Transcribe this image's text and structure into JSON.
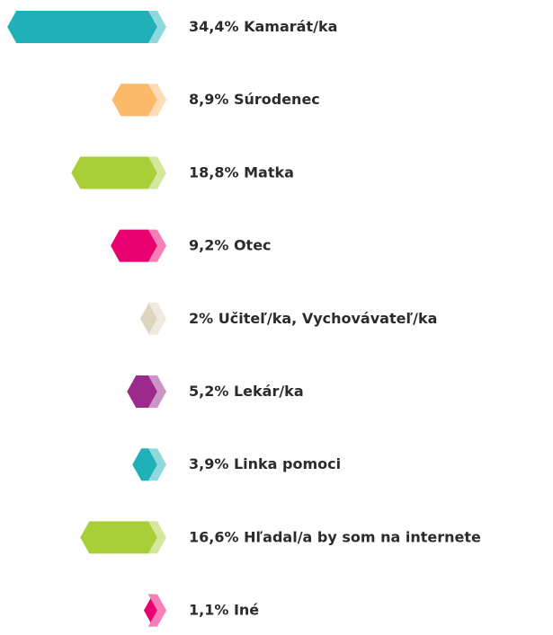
{
  "chart_data": {
    "type": "bar",
    "categories": [
      "Kamarát/ka",
      "Súrodenec",
      "Matka",
      "Otec",
      "Učiteľ/ka, Vychovávateľ/ka",
      "Lekár/ka",
      "Linka pomoci",
      "Hľadal/a by som na internete",
      "Iné"
    ],
    "values": [
      34.4,
      8.9,
      18.8,
      9.2,
      2,
      5.2,
      3.9,
      16.6,
      1.1
    ],
    "value_labels": [
      "34,4%",
      "8,9%",
      "18,8%",
      "9,2%",
      "2%",
      "5,2%",
      "3,9%",
      "16,6%",
      "1,1%"
    ],
    "colors": [
      "#1fb0b8",
      "#fdb96a",
      "#a8cf38",
      "#e8006f",
      "#ddd5bf",
      "#9b2a8c",
      "#1fb0b8",
      "#a8cf38",
      "#e8006f"
    ]
  }
}
